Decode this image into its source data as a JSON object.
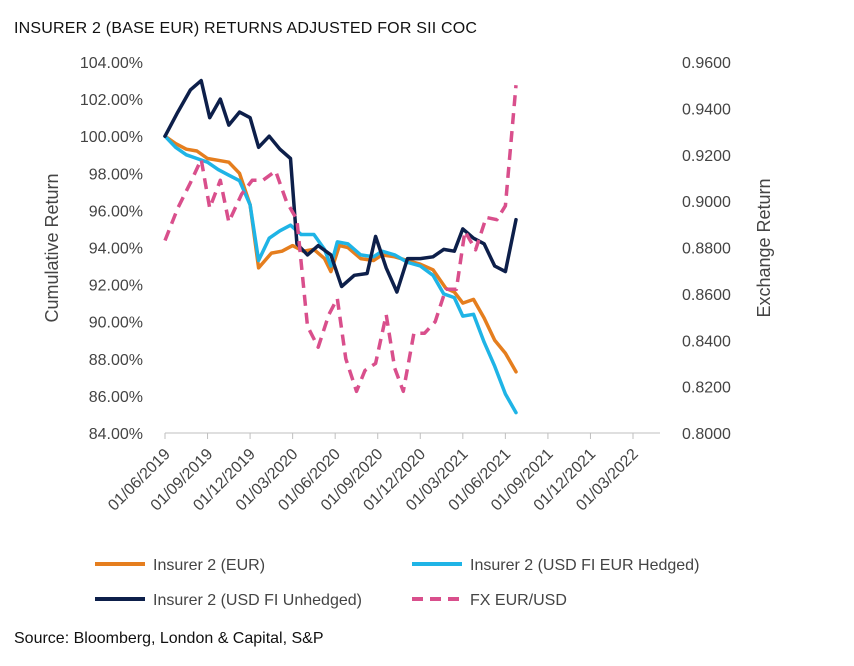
{
  "title": "INSURER 2 (BASE EUR) RETURNS ADJUSTED FOR SII COC",
  "source": "Source: Bloomberg, London & Capital, S&P",
  "chart_data": {
    "type": "line",
    "grid": false,
    "legend_position": "bottom",
    "x_tick_labels": [
      "01/06/2019",
      "01/09/2019",
      "01/12/2019",
      "01/03/2020",
      "01/06/2020",
      "01/09/2020",
      "01/12/2020",
      "01/03/2021",
      "01/06/2021",
      "01/09/2021",
      "01/12/2021",
      "01/03/2022"
    ],
    "y_left": {
      "label": "Cumulative Return",
      "lim": [
        84,
        104
      ],
      "ticks": [
        84,
        86,
        88,
        90,
        92,
        94,
        96,
        98,
        100,
        102,
        104
      ],
      "tick_labels": [
        "84.00%",
        "86.00%",
        "88.00%",
        "90.00%",
        "92.00%",
        "94.00%",
        "96.00%",
        "98.00%",
        "100.00%",
        "102.00%",
        "104.00%"
      ]
    },
    "y_right": {
      "label": "Exchange Return",
      "lim": [
        0.8,
        0.96
      ],
      "ticks": [
        0.8,
        0.82,
        0.84,
        0.86,
        0.88,
        0.9,
        0.92,
        0.94,
        0.96
      ],
      "tick_labels": [
        "0.8000",
        "0.8200",
        "0.8400",
        "0.8600",
        "0.8800",
        "0.9000",
        "0.9200",
        "0.9400",
        "0.9600"
      ]
    },
    "series": [
      {
        "name": "Insurer 2 (EUR)",
        "axis": "left",
        "color": "#E57E1E",
        "dash": false,
        "width": 3.5,
        "points": [
          [
            0,
            100.0
          ],
          [
            0.25,
            99.6
          ],
          [
            0.5,
            99.3
          ],
          [
            0.75,
            99.2
          ],
          [
            1.0,
            98.8
          ],
          [
            1.25,
            98.7
          ],
          [
            1.5,
            98.6
          ],
          [
            1.75,
            98.0
          ],
          [
            2.0,
            96.3
          ],
          [
            2.2,
            92.9
          ],
          [
            2.5,
            93.7
          ],
          [
            2.75,
            93.8
          ],
          [
            3.0,
            94.1
          ],
          [
            3.25,
            93.8
          ],
          [
            3.5,
            93.9
          ],
          [
            3.75,
            93.4
          ],
          [
            3.9,
            92.7
          ],
          [
            4.1,
            94.1
          ],
          [
            4.3,
            94.0
          ],
          [
            4.6,
            93.4
          ],
          [
            4.9,
            93.3
          ],
          [
            5.1,
            93.6
          ],
          [
            5.4,
            93.5
          ],
          [
            5.7,
            93.3
          ],
          [
            6.0,
            93.1
          ],
          [
            6.3,
            92.8
          ],
          [
            6.6,
            91.8
          ],
          [
            6.8,
            91.6
          ],
          [
            7.0,
            91.0
          ],
          [
            7.25,
            91.2
          ],
          [
            7.5,
            90.2
          ],
          [
            7.75,
            89.0
          ],
          [
            8.0,
            88.3
          ],
          [
            8.25,
            87.3
          ]
        ]
      },
      {
        "name": "Insurer 2 (USD FI EUR Hedged)",
        "axis": "left",
        "color": "#1FB4E6",
        "dash": false,
        "width": 3.5,
        "points": [
          [
            0,
            100.0
          ],
          [
            0.25,
            99.4
          ],
          [
            0.5,
            99.0
          ],
          [
            0.75,
            98.8
          ],
          [
            1.0,
            98.6
          ],
          [
            1.25,
            98.2
          ],
          [
            1.5,
            97.9
          ],
          [
            1.75,
            97.6
          ],
          [
            2.0,
            96.3
          ],
          [
            2.2,
            93.3
          ],
          [
            2.45,
            94.5
          ],
          [
            2.7,
            94.9
          ],
          [
            2.95,
            95.2
          ],
          [
            3.2,
            94.7
          ],
          [
            3.5,
            94.7
          ],
          [
            3.75,
            93.9
          ],
          [
            3.9,
            93.0
          ],
          [
            4.05,
            94.3
          ],
          [
            4.3,
            94.2
          ],
          [
            4.6,
            93.6
          ],
          [
            4.9,
            93.5
          ],
          [
            5.1,
            93.8
          ],
          [
            5.4,
            93.6
          ],
          [
            5.7,
            93.2
          ],
          [
            6.0,
            93.0
          ],
          [
            6.3,
            92.5
          ],
          [
            6.55,
            91.5
          ],
          [
            6.8,
            91.3
          ],
          [
            7.0,
            90.3
          ],
          [
            7.25,
            90.4
          ],
          [
            7.5,
            88.9
          ],
          [
            7.75,
            87.6
          ],
          [
            8.0,
            86.1
          ],
          [
            8.25,
            85.1
          ]
        ]
      },
      {
        "name": "Insurer 2 (USD FI Unhedged)",
        "axis": "left",
        "color": "#0D1F4A",
        "dash": false,
        "width": 3.5,
        "points": [
          [
            0,
            100.0
          ],
          [
            0.3,
            101.3
          ],
          [
            0.6,
            102.5
          ],
          [
            0.85,
            103.0
          ],
          [
            1.05,
            101.0
          ],
          [
            1.3,
            102.0
          ],
          [
            1.5,
            100.6
          ],
          [
            1.75,
            101.3
          ],
          [
            2.0,
            101.0
          ],
          [
            2.2,
            99.4
          ],
          [
            2.45,
            100.0
          ],
          [
            2.7,
            99.3
          ],
          [
            2.95,
            98.8
          ],
          [
            3.1,
            94.2
          ],
          [
            3.35,
            93.6
          ],
          [
            3.6,
            94.1
          ],
          [
            3.9,
            93.6
          ],
          [
            4.15,
            91.9
          ],
          [
            4.45,
            92.5
          ],
          [
            4.75,
            92.6
          ],
          [
            4.95,
            94.6
          ],
          [
            5.2,
            92.9
          ],
          [
            5.45,
            91.6
          ],
          [
            5.7,
            93.4
          ],
          [
            6.0,
            93.4
          ],
          [
            6.3,
            93.5
          ],
          [
            6.55,
            93.9
          ],
          [
            6.8,
            93.8
          ],
          [
            7.0,
            95.0
          ],
          [
            7.25,
            94.5
          ],
          [
            7.5,
            94.2
          ],
          [
            7.75,
            93.0
          ],
          [
            8.0,
            92.7
          ],
          [
            8.25,
            95.5
          ]
        ]
      },
      {
        "name": "FX EUR/USD",
        "axis": "right",
        "color": "#D94F8C",
        "dash": true,
        "width": 3.5,
        "points": [
          [
            0,
            0.883
          ],
          [
            0.3,
            0.897
          ],
          [
            0.6,
            0.908
          ],
          [
            0.85,
            0.918
          ],
          [
            1.05,
            0.897
          ],
          [
            1.3,
            0.909
          ],
          [
            1.5,
            0.891
          ],
          [
            1.8,
            0.903
          ],
          [
            2.05,
            0.909
          ],
          [
            2.3,
            0.909
          ],
          [
            2.6,
            0.913
          ],
          [
            2.85,
            0.9
          ],
          [
            3.1,
            0.892
          ],
          [
            3.35,
            0.846
          ],
          [
            3.6,
            0.837
          ],
          [
            3.85,
            0.851
          ],
          [
            4.05,
            0.858
          ],
          [
            4.25,
            0.832
          ],
          [
            4.5,
            0.818
          ],
          [
            4.7,
            0.827
          ],
          [
            4.95,
            0.83
          ],
          [
            5.2,
            0.851
          ],
          [
            5.4,
            0.828
          ],
          [
            5.6,
            0.818
          ],
          [
            5.85,
            0.843
          ],
          [
            6.1,
            0.843
          ],
          [
            6.35,
            0.848
          ],
          [
            6.6,
            0.862
          ],
          [
            6.85,
            0.862
          ],
          [
            7.05,
            0.887
          ],
          [
            7.3,
            0.879
          ],
          [
            7.55,
            0.893
          ],
          [
            7.8,
            0.892
          ],
          [
            8.0,
            0.898
          ],
          [
            8.25,
            0.95
          ]
        ]
      }
    ]
  }
}
